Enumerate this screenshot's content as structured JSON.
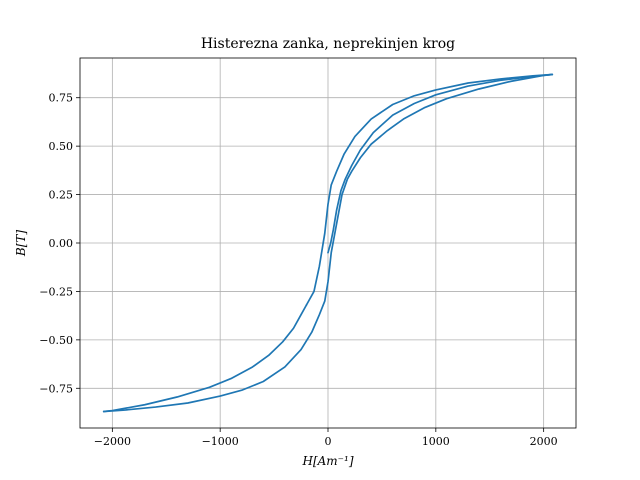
{
  "chart_data": {
    "type": "line",
    "title": "Histerezna zanka, neprekinjen krog",
    "xlabel": "H[Am⁻¹]",
    "ylabel": "B[T]",
    "xlim": [
      -2300,
      2300
    ],
    "ylim": [
      -0.955,
      0.955
    ],
    "x_ticks": [
      -2000,
      -1000,
      0,
      1000,
      2000
    ],
    "x_tick_labels": [
      "−2000",
      "−1000",
      "0",
      "1000",
      "2000"
    ],
    "y_ticks": [
      -0.75,
      -0.5,
      -0.25,
      0.0,
      0.25,
      0.5,
      0.75
    ],
    "y_tick_labels": [
      "−0.75",
      "−0.50",
      "−0.25",
      "0.00",
      "0.25",
      "0.50",
      "0.75"
    ],
    "grid": true,
    "color": "#1f77b4",
    "series": [
      {
        "x": [
          0,
          25,
          50,
          80,
          120,
          160,
          220,
          300,
          420,
          600,
          800,
          1000,
          1300,
          1600,
          1900,
          2080
        ],
        "y": [
          -0.05,
          0.0,
          0.07,
          0.17,
          0.27,
          0.33,
          0.4,
          0.48,
          0.57,
          0.66,
          0.72,
          0.765,
          0.81,
          0.84,
          0.86,
          0.87
        ]
      },
      {
        "x": [
          2080,
          1900,
          1600,
          1300,
          1000,
          800,
          600,
          400,
          250,
          150,
          80,
          30,
          0,
          -30,
          -80,
          -130,
          -180,
          -200
        ],
        "y": [
          0.87,
          0.863,
          0.847,
          0.826,
          0.79,
          0.76,
          0.715,
          0.64,
          0.55,
          0.46,
          0.37,
          0.3,
          0.2,
          0.05,
          -0.12,
          -0.25,
          -0.3,
          -0.32
        ]
      },
      {
        "x": [
          -200,
          -250,
          -320,
          -420,
          -550,
          -700,
          -900,
          -1100,
          -1400,
          -1700,
          -2000,
          -2080
        ],
        "y": [
          -0.32,
          -0.37,
          -0.44,
          -0.51,
          -0.58,
          -0.64,
          -0.7,
          -0.745,
          -0.795,
          -0.835,
          -0.865,
          -0.87
        ]
      },
      {
        "x": [
          -2080,
          -1900,
          -1600,
          -1300,
          -1000,
          -800,
          -600,
          -400,
          -250,
          -150,
          -80,
          -30,
          0,
          30,
          80,
          130,
          180,
          220,
          300,
          400,
          550,
          700,
          900,
          1100,
          1400,
          1700,
          2000,
          2080
        ],
        "y": [
          -0.87,
          -0.863,
          -0.847,
          -0.826,
          -0.79,
          -0.76,
          -0.715,
          -0.64,
          -0.55,
          -0.46,
          -0.37,
          -0.3,
          -0.2,
          -0.05,
          0.1,
          0.25,
          0.33,
          0.37,
          0.44,
          0.51,
          0.58,
          0.64,
          0.7,
          0.745,
          0.795,
          0.835,
          0.865,
          0.87
        ]
      }
    ]
  }
}
